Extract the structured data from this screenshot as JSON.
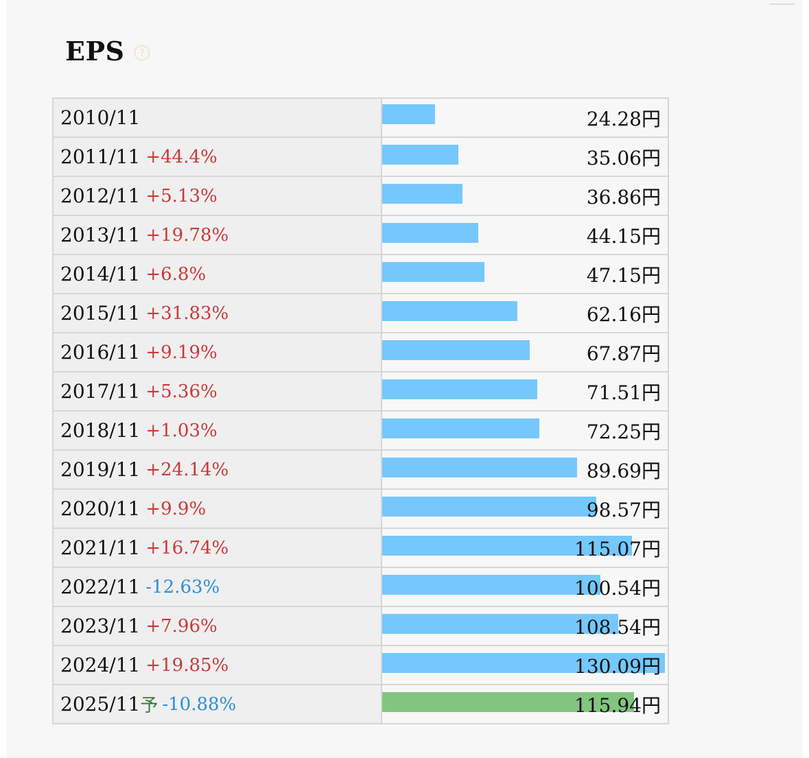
{
  "title": "EPS",
  "help_icon": "question-circle-icon",
  "colors": {
    "bar_actual": "#74c8fc",
    "bar_forecast": "#82c580",
    "change_up": "#c9393a",
    "change_down": "#2e8fd0",
    "forecast_mark": "#2e7d32"
  },
  "forecast_mark": "予",
  "chart_data": {
    "type": "bar",
    "orientation": "horizontal",
    "title": "EPS",
    "unit": "円",
    "xlim": [
      0,
      130.09
    ],
    "rows": [
      {
        "period": "2010/11",
        "change": "",
        "value_text": "24.28円",
        "value": 24.28,
        "forecast": false
      },
      {
        "period": "2011/11",
        "change": "+44.4%",
        "value_text": "35.06円",
        "value": 35.06,
        "forecast": false
      },
      {
        "period": "2012/11",
        "change": "+5.13%",
        "value_text": "36.86円",
        "value": 36.86,
        "forecast": false
      },
      {
        "period": "2013/11",
        "change": "+19.78%",
        "value_text": "44.15円",
        "value": 44.15,
        "forecast": false
      },
      {
        "period": "2014/11",
        "change": "+6.8%",
        "value_text": "47.15円",
        "value": 47.15,
        "forecast": false
      },
      {
        "period": "2015/11",
        "change": "+31.83%",
        "value_text": "62.16円",
        "value": 62.16,
        "forecast": false
      },
      {
        "period": "2016/11",
        "change": "+9.19%",
        "value_text": "67.87円",
        "value": 67.87,
        "forecast": false
      },
      {
        "period": "2017/11",
        "change": "+5.36%",
        "value_text": "71.51円",
        "value": 71.51,
        "forecast": false
      },
      {
        "period": "2018/11",
        "change": "+1.03%",
        "value_text": "72.25円",
        "value": 72.25,
        "forecast": false
      },
      {
        "period": "2019/11",
        "change": "+24.14%",
        "value_text": "89.69円",
        "value": 89.69,
        "forecast": false
      },
      {
        "period": "2020/11",
        "change": "+9.9%",
        "value_text": "98.57円",
        "value": 98.57,
        "forecast": false
      },
      {
        "period": "2021/11",
        "change": "+16.74%",
        "value_text": "115.07円",
        "value": 115.07,
        "forecast": false
      },
      {
        "period": "2022/11",
        "change": "-12.63%",
        "value_text": "100.54円",
        "value": 100.54,
        "forecast": false
      },
      {
        "period": "2023/11",
        "change": "+7.96%",
        "value_text": "108.54円",
        "value": 108.54,
        "forecast": false
      },
      {
        "period": "2024/11",
        "change": "+19.85%",
        "value_text": "130.09円",
        "value": 130.09,
        "forecast": false
      },
      {
        "period": "2025/11",
        "change": "-10.88%",
        "value_text": "115.94円",
        "value": 115.94,
        "forecast": true
      }
    ]
  }
}
